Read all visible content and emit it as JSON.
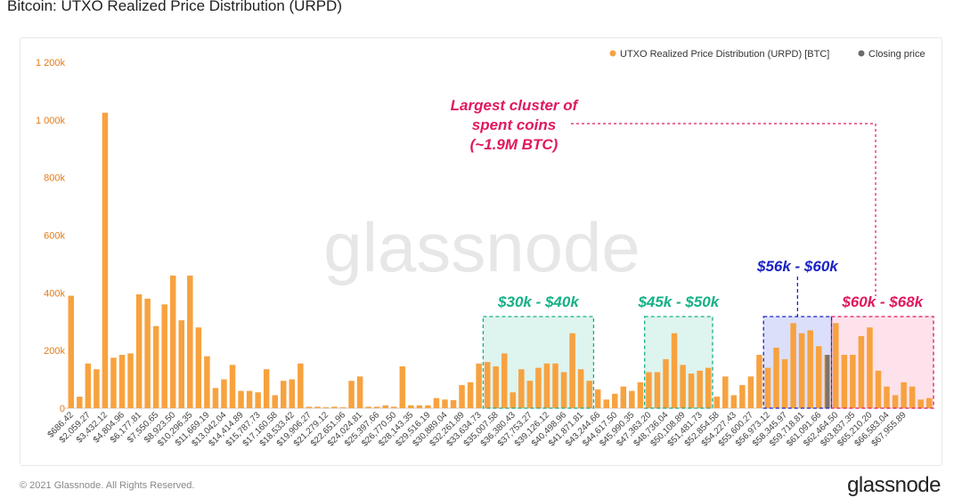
{
  "page": {
    "title": "Bitcoin: UTXO Realized Price Distribution (URPD)",
    "footer_copyright": "© 2021 Glassnode. All Rights Reserved.",
    "footer_logo": "glassnode",
    "watermark": "glassnode"
  },
  "colors": {
    "bar": "#f7a23f",
    "closing": "#6b6b6b",
    "green": "#16b088",
    "blue": "#1a22c4",
    "pink": "#e0185f",
    "axis_text": "#e37b17"
  },
  "chart_data": {
    "type": "bar",
    "xlabel": "",
    "ylabel": "",
    "ylim": [
      0,
      1200000
    ],
    "grid": false,
    "legend_placement": "top-right",
    "y_ticks": [
      {
        "value": 0,
        "label": "0"
      },
      {
        "value": 200000,
        "label": "200k"
      },
      {
        "value": 400000,
        "label": "400k"
      },
      {
        "value": 600000,
        "label": "600k"
      },
      {
        "value": 800000,
        "label": "800k"
      },
      {
        "value": 1000000,
        "label": "1 000k"
      },
      {
        "value": 1200000,
        "label": "1 200k"
      }
    ],
    "x_tick_labels": [
      "$686.42",
      "$2,059.27",
      "$3,432.12",
      "$4,804.96",
      "$6,177.81",
      "$7,550.65",
      "$8,923.50",
      "$10,296.35",
      "$11,669.19",
      "$13,042.04",
      "$14,414.89",
      "$15,787.73",
      "$17,160.58",
      "$18,533.42",
      "$19,906.27",
      "$21,279.12",
      "$22,651.96",
      "$24,024.81",
      "$25,397.66",
      "$26,770.50",
      "$28,143.35",
      "$29,516.19",
      "$30,889.04",
      "$32,261.89",
      "$33,634.73",
      "$35,007.58",
      "$36,380.43",
      "$37,753.27",
      "$39,126.12",
      "$40,498.96",
      "$41,871.81",
      "$43,244.66",
      "$44,617.50",
      "$45,990.35",
      "$47,363.20",
      "$48,736.04",
      "$50,108.89",
      "$51,481.73",
      "$52,854.58",
      "$54,227.43",
      "$55,600.27",
      "$56,973.12",
      "$58,345.97",
      "$59,718.81",
      "$61,091.66",
      "$62,464.50",
      "$63,837.35",
      "$65,210.20",
      "$66,583.04",
      "$67,955.89"
    ],
    "series": [
      {
        "name": "UTXO Realized Price Distribution (URPD) [BTC]",
        "values": [
          390000,
          40000,
          155000,
          135000,
          1025000,
          175000,
          185000,
          190000,
          395000,
          380000,
          285000,
          360000,
          460000,
          305000,
          460000,
          280000,
          180000,
          70000,
          100000,
          150000,
          60000,
          60000,
          55000,
          135000,
          45000,
          95000,
          100000,
          155000,
          5000,
          5000,
          3000,
          5000,
          3000,
          95000,
          110000,
          5000,
          5000,
          10000,
          5000,
          145000,
          10000,
          10000,
          10000,
          35000,
          30000,
          28000,
          80000,
          90000,
          155000,
          160000,
          145000,
          190000,
          55000,
          135000,
          95000,
          140000,
          155000,
          155000,
          125000,
          260000,
          135000,
          95000,
          65000,
          30000,
          50000,
          75000,
          60000,
          90000,
          125000,
          125000,
          170000,
          260000,
          150000,
          120000,
          130000,
          140000,
          40000,
          110000,
          45000,
          80000,
          110000,
          185000,
          140000,
          210000,
          170000,
          295000,
          260000,
          270000,
          215000,
          185000,
          295000,
          185000,
          185000,
          250000,
          280000,
          130000,
          75000,
          45000,
          90000,
          75000,
          30000,
          35000
        ]
      },
      {
        "name": "Closing price",
        "bar_index": 89
      }
    ],
    "regions": [
      {
        "label": "$30k - $40k",
        "color": "#16b088",
        "fill": "rgba(22,176,136,0.14)",
        "from_index": 49,
        "to_index": 61
      },
      {
        "label": "$45k - $50k",
        "color": "#16b088",
        "fill": "rgba(22,176,136,0.14)",
        "from_index": 68,
        "to_index": 75
      },
      {
        "label": "$56k - $60k",
        "color": "#1a22c4",
        "fill": "rgba(60,80,220,0.18)",
        "from_index": 82,
        "to_index": 89
      },
      {
        "label": "$60k - $68k",
        "color": "#e0185f",
        "fill": "rgba(240,60,120,0.15)",
        "from_index": 90,
        "to_index": 101
      }
    ],
    "annotation": {
      "lines": [
        "Largest cluster of",
        "spent coins",
        "(~1.9M BTC)"
      ],
      "color": "#e0185f"
    }
  }
}
